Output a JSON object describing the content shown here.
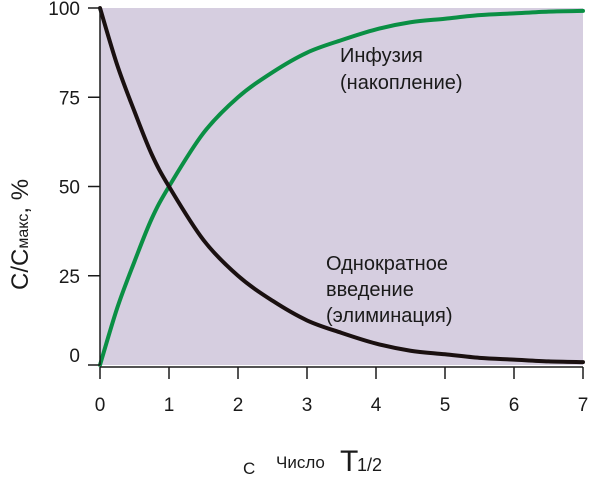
{
  "chart_data": {
    "type": "line",
    "ylabel_main": "C/C",
    "ylabel_sub": "макс",
    "ylabel_unit": ", %",
    "xlabel_prefix": "С",
    "xlabel_main": "Число",
    "xlabel_symbol": "T",
    "xlabel_subscript": "1/2",
    "xlim": [
      0,
      7
    ],
    "ylim": [
      0,
      100
    ],
    "x_ticks": [
      "0",
      "1",
      "2",
      "3",
      "4",
      "5",
      "6",
      "7"
    ],
    "y_ticks": [
      "0",
      "25",
      "50",
      "75",
      "100"
    ],
    "grid": false,
    "background_color": "#d6cee0",
    "series": [
      {
        "color": "#0a8f44",
        "x": [
          0,
          0.25,
          0.5,
          0.75,
          1,
          1.5,
          2,
          2.5,
          3,
          3.5,
          4,
          4.5,
          5,
          5.5,
          6,
          6.5,
          7
        ],
        "values": [
          0,
          16,
          29,
          41,
          50,
          65,
          75,
          82,
          87.5,
          91,
          94,
          96,
          97,
          98,
          98.5,
          99,
          99.2
        ]
      },
      {
        "color": "#1a1010",
        "x": [
          0,
          0.25,
          0.5,
          0.75,
          1,
          1.5,
          2,
          2.5,
          3,
          3.5,
          4,
          4.5,
          5,
          5.5,
          6,
          6.5,
          7
        ],
        "values": [
          100,
          84,
          71,
          59,
          50,
          35,
          25,
          18,
          12.5,
          9,
          6,
          4,
          3,
          2,
          1.5,
          1,
          0.8
        ]
      }
    ],
    "annotations": [
      {
        "lines": [
          "Инфузия",
          "(накопление)"
        ]
      },
      {
        "lines": [
          "Однократное",
          "введение",
          "(элиминация)"
        ]
      }
    ]
  }
}
